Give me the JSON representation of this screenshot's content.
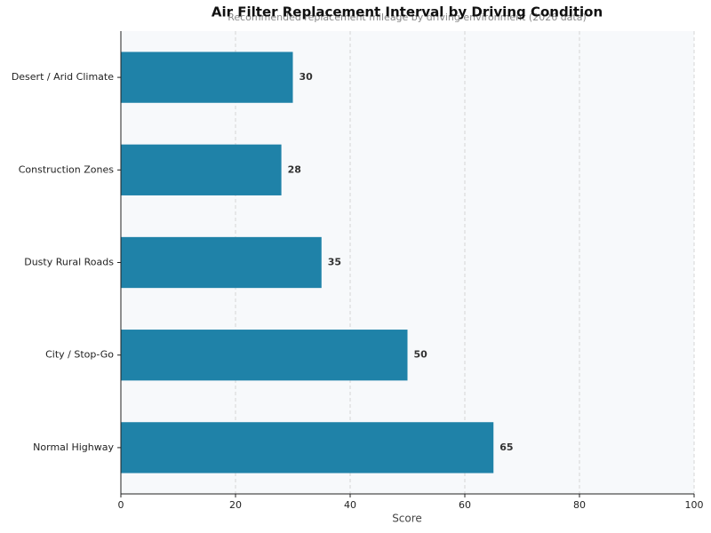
{
  "chart_data": {
    "type": "barh",
    "title": "Air Filter Replacement Interval by Driving Condition",
    "subtitle": "Recommended replacement mileage by driving environment (2026 data)",
    "categories": [
      "Desert / Arid Climate",
      "Construction Zones",
      "Dusty Rural Roads",
      "City / Stop-Go",
      "Normal Highway"
    ],
    "values": [
      30,
      28,
      35,
      50,
      65
    ],
    "color": "#1f82a8",
    "xlabel": "Score",
    "xlim": [
      0,
      100
    ],
    "xticks": [
      0,
      20,
      40,
      60,
      80,
      100
    ],
    "grid": true
  }
}
